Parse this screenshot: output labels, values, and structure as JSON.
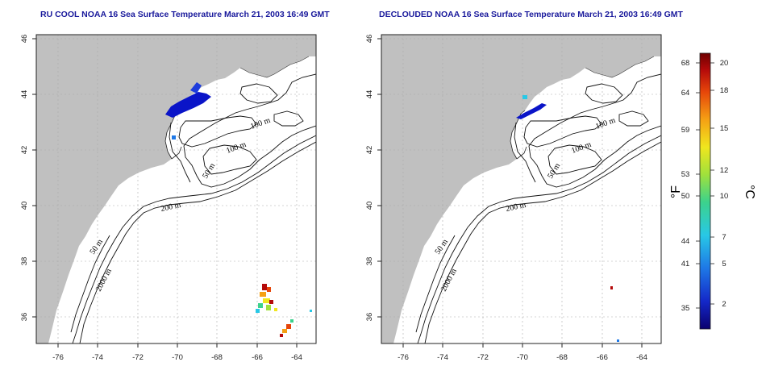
{
  "titles": {
    "left": "RU COOL NOAA 16 Sea Surface Temperature March 21, 2003 16:49 GMT",
    "right": "DECLOUDED NOAA 16 Sea Surface Temperature March 21, 2003 16:49 GMT"
  },
  "axes": {
    "x_ticks": [
      "-76",
      "-74",
      "-72",
      "-70",
      "-68",
      "-66",
      "-64"
    ],
    "y_ticks": [
      "46",
      "44",
      "42",
      "40",
      "38",
      "36"
    ]
  },
  "contour_labels": {
    "c100a": "100 m",
    "c100b": "100 m",
    "c50a": "50 m",
    "c200": "200 m",
    "c50b": "50 m",
    "c2000": "2000 m"
  },
  "colorbar": {
    "fahrenheit_unit": "°F",
    "celsius_unit": "°C",
    "fahrenheit_ticks": [
      "68",
      "64",
      "59",
      "53",
      "50",
      "44",
      "41",
      "35"
    ],
    "celsius_ticks": [
      "20",
      "18",
      "15",
      "12",
      "10",
      "7",
      "5",
      "2"
    ]
  },
  "colors": {
    "land": "#c0c0c0",
    "title": "#1a1a9c",
    "cold": "#0010c8",
    "warm": "#d02000"
  }
}
